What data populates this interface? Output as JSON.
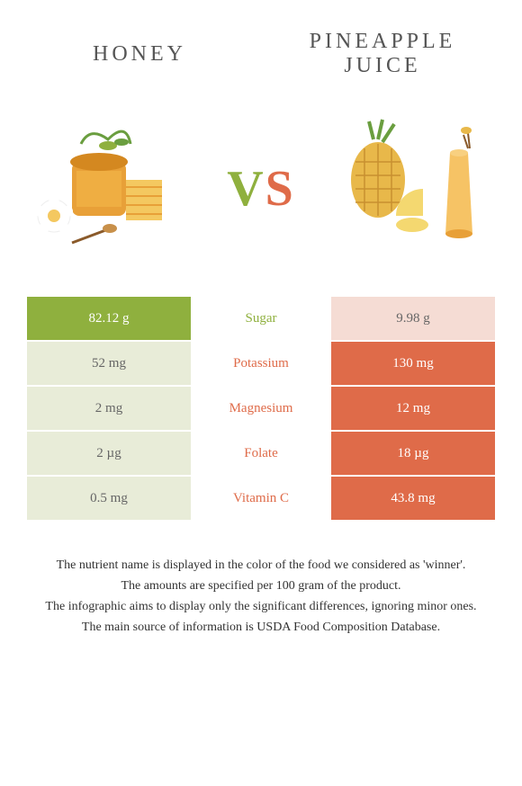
{
  "header": {
    "left_title": "HONEY",
    "right_title": "PINEAPPLE JUICE",
    "vs_v": "V",
    "vs_s": "S"
  },
  "colors": {
    "green": "#8fb03e",
    "green_light": "#e8ecd8",
    "orange": "#df6b49",
    "orange_light": "#f5dcd4",
    "text_gray": "#555"
  },
  "rows": [
    {
      "nutrient": "Sugar",
      "left": "82.12 g",
      "right": "9.98 g",
      "winner": "left"
    },
    {
      "nutrient": "Potassium",
      "left": "52 mg",
      "right": "130 mg",
      "winner": "right"
    },
    {
      "nutrient": "Magnesium",
      "left": "2 mg",
      "right": "12 mg",
      "winner": "right"
    },
    {
      "nutrient": "Folate",
      "left": "2 µg",
      "right": "18 µg",
      "winner": "right"
    },
    {
      "nutrient": "Vitamin C",
      "left": "0.5 mg",
      "right": "43.8 mg",
      "winner": "right"
    }
  ],
  "footer": {
    "line1": "The nutrient name is displayed in the color of the food we considered as 'winner'.",
    "line2": "The amounts are specified per 100 gram of the product.",
    "line3": "The infographic aims to display only the significant differences, ignoring minor ones.",
    "line4": "The main source of information is USDA Food Composition Database."
  }
}
